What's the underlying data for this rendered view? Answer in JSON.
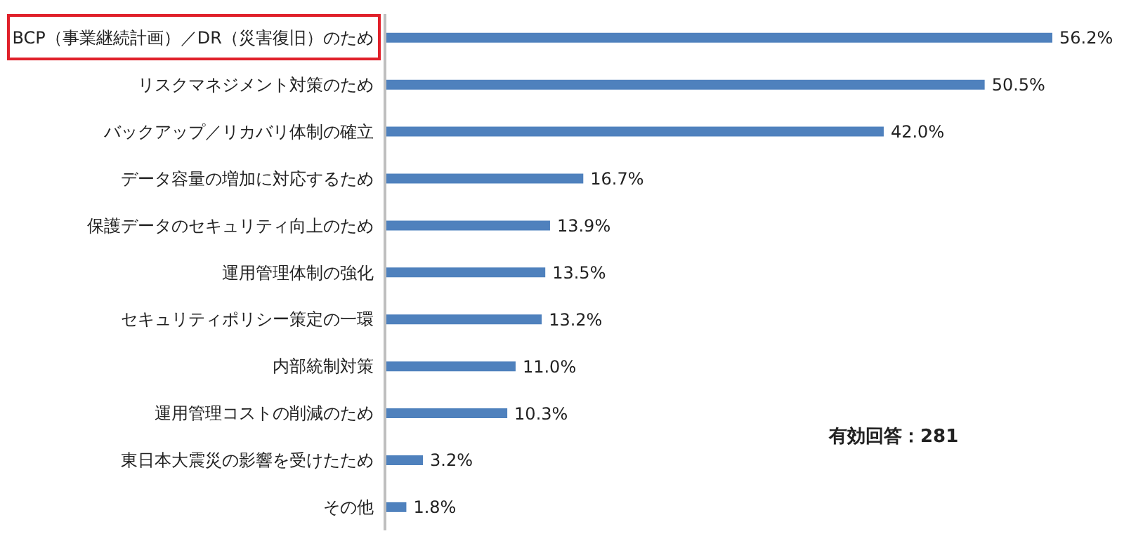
{
  "chart_data": {
    "type": "bar",
    "orientation": "horizontal",
    "categories": [
      "BCP（事業継続計画）／DR（災害復旧）のため",
      "リスクマネジメント対策のため",
      "バックアップ／リカバリ体制の確立",
      "データ容量の増加に対応するため",
      "保護データのセキュリティ向上のため",
      "運用管理体制の強化",
      "セキュリティポリシー策定の一環",
      "内部統制対策",
      "運用管理コストの削減のため",
      "東日本大震災の影響を受けたため",
      "その他"
    ],
    "values": [
      56.2,
      50.5,
      42.0,
      16.7,
      13.9,
      13.5,
      13.2,
      11.0,
      10.3,
      3.2,
      1.8
    ],
    "value_labels": [
      "56.2%",
      "50.5%",
      "42.0%",
      "16.7%",
      "13.9%",
      "13.5%",
      "13.2%",
      "11.0%",
      "10.3%",
      "3.2%",
      "1.8%"
    ],
    "color": "#4f81bd",
    "tick_labels": "y",
    "grid": false,
    "annotations": [
      "有効回答：281"
    ]
  }
}
